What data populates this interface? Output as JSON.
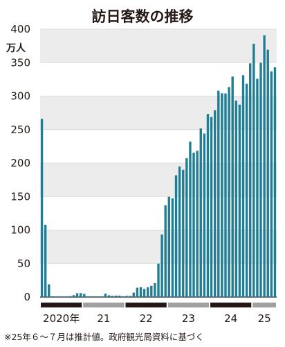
{
  "chart_data": {
    "type": "bar",
    "title": "訪日客数の推移",
    "ylabel": "万人",
    "ylim": [
      0,
      400
    ],
    "yticks": [
      0,
      50,
      100,
      150,
      200,
      250,
      300,
      350,
      400
    ],
    "grid": true,
    "start_month": "2020-01",
    "years": [
      {
        "label": "2020年",
        "months": 12,
        "band_color": "#231815"
      },
      {
        "label": "21",
        "months": 12,
        "band_color": "#a0a0a0"
      },
      {
        "label": "22",
        "months": 12,
        "band_color": "#231815"
      },
      {
        "label": "23",
        "months": 12,
        "band_color": "#a0a0a0"
      },
      {
        "label": "24",
        "months": 12,
        "band_color": "#231815"
      },
      {
        "label": "25",
        "months": 7,
        "band_color": "#a0a0a0"
      }
    ],
    "values": [
      266,
      108,
      19,
      0.3,
      0.2,
      0.3,
      0.4,
      0.9,
      1.4,
      2.8,
      5.6,
      5.9,
      4.6,
      0.7,
      1.2,
      1.1,
      1.0,
      0.9,
      5.1,
      2.6,
      1.8,
      2.1,
      2.1,
      1.2,
      1.7,
      1.7,
      6.6,
      13.9,
      14.7,
      12.1,
      14.5,
      16.9,
      20.7,
      49.9,
      93.4,
      137.0,
      149.7,
      147.6,
      181.8,
      194.9,
      189.9,
      207.3,
      232.0,
      215.6,
      218.4,
      251.7,
      244.1,
      273.4,
      268.8,
      278.8,
      308.1,
      304.3,
      304.0,
      313.5,
      329.2,
      293.3,
      287.3,
      331.2,
      318.5,
      348.9,
      378.1,
      325.8,
      349.7,
      390.8,
      369.3,
      337.0,
      343.0
    ],
    "bar_color": "#1f7d94",
    "band_colors": {
      "dark": "#231815",
      "light": "#a0a0a0"
    },
    "note": "※25年６～７月は推計値。政府観光局資料に基づく"
  }
}
